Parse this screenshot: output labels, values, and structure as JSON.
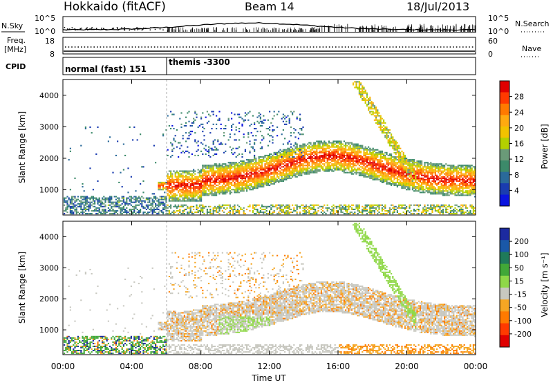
{
  "header": {
    "station": "Hokkaido (fitACF)",
    "beam": "Beam 14",
    "date": "18/Jul/2013"
  },
  "nsky_panel": {
    "left_label": "N.Sky",
    "right_label": "N.Search",
    "ticks": [
      "10^5",
      "10^0"
    ]
  },
  "freq_panel": {
    "left_label_1": "Freq.",
    "left_label_2": "[MHz]",
    "left_ticks": [
      "18",
      "8"
    ],
    "right_label": "Nave",
    "right_ticks": [
      "60",
      "0"
    ]
  },
  "cpid_panel": {
    "label": "CPID",
    "modes": [
      {
        "name": "normal (fast) 151",
        "start_hour": 0
      },
      {
        "name": "themis -3300",
        "start_hour": 6
      }
    ]
  },
  "chart_data": [
    {
      "type": "heatmap",
      "name": "power",
      "ylabel": "Slant Range [km]",
      "xlabel": "",
      "y_ticks": [
        "4000",
        "3000",
        "2000",
        "1000"
      ],
      "y_tick_values": [
        4000,
        3000,
        2000,
        1000
      ],
      "ylim": [
        200,
        4500
      ],
      "xlim_hours": [
        0,
        24
      ],
      "colorbar": {
        "label": "Power [dB]",
        "ticks": [
          "28",
          "24",
          "20",
          "16",
          "12",
          "8",
          "4"
        ],
        "colors": [
          "#e00000",
          "#ff3a00",
          "#ff7a00",
          "#ffaa10",
          "#f2c200",
          "#b4d000",
          "#6a9a78",
          "#3c8a6a",
          "#2a6a9a",
          "#1a3cb0",
          "#0a14e0"
        ]
      }
    },
    {
      "type": "heatmap",
      "name": "velocity",
      "ylabel": "Slant Range [km]",
      "xlabel": "Time UT",
      "y_ticks": [
        "4000",
        "3000",
        "2000",
        "1000"
      ],
      "y_tick_values": [
        4000,
        3000,
        2000,
        1000
      ],
      "ylim": [
        200,
        4500
      ],
      "xlim_hours": [
        0,
        24
      ],
      "x_ticks": [
        "00:00",
        "04:00",
        "08:00",
        "12:00",
        "16:00",
        "20:00",
        "00:00"
      ],
      "colorbar": {
        "label": "Velocity [m s⁻¹]",
        "ticks": [
          "200",
          "100",
          "50",
          "15",
          "-15",
          "-50",
          "-100",
          "-200"
        ],
        "colors": [
          "#1c2aa0",
          "#1a58a8",
          "#1f7a5a",
          "#41a838",
          "#8fd848",
          "#c8c8c0",
          "#f5a623",
          "#ff7a00",
          "#ff3a00",
          "#e00000"
        ]
      }
    }
  ]
}
